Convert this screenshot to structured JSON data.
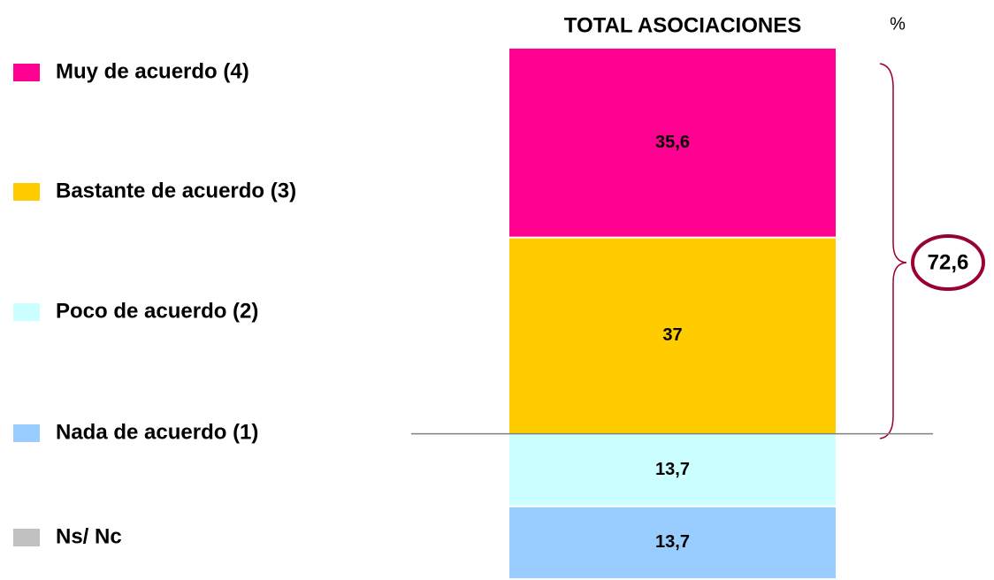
{
  "chart_data": {
    "type": "diverging_stacked_bar",
    "title": "TOTAL ASOCIACIONES",
    "unit": "%",
    "categories": [
      "TOTAL ASOCIACIONES"
    ],
    "series": [
      {
        "name": "Muy de acuerdo (4)",
        "color": "#ff0090",
        "values": [
          35.6
        ],
        "value_labels": [
          "35,6"
        ]
      },
      {
        "name": "Bastante de acuerdo (3)",
        "color": "#ffcc00",
        "values": [
          37
        ],
        "value_labels": [
          "37"
        ]
      },
      {
        "name": "Poco de acuerdo (2)",
        "color": "#ccffff",
        "values": [
          -13.7
        ],
        "value_labels": [
          "13,7"
        ]
      },
      {
        "name": "Nada de acuerdo (1)",
        "color": "#99ccff",
        "values": [
          -13.7
        ],
        "value_labels": [
          "13,7"
        ]
      },
      {
        "name": "Ns/ Nc",
        "color": "#c0c0c0",
        "values": [
          0
        ]
      }
    ],
    "annotation": "72,6",
    "ylim": [
      -27.4,
      72.6
    ]
  }
}
